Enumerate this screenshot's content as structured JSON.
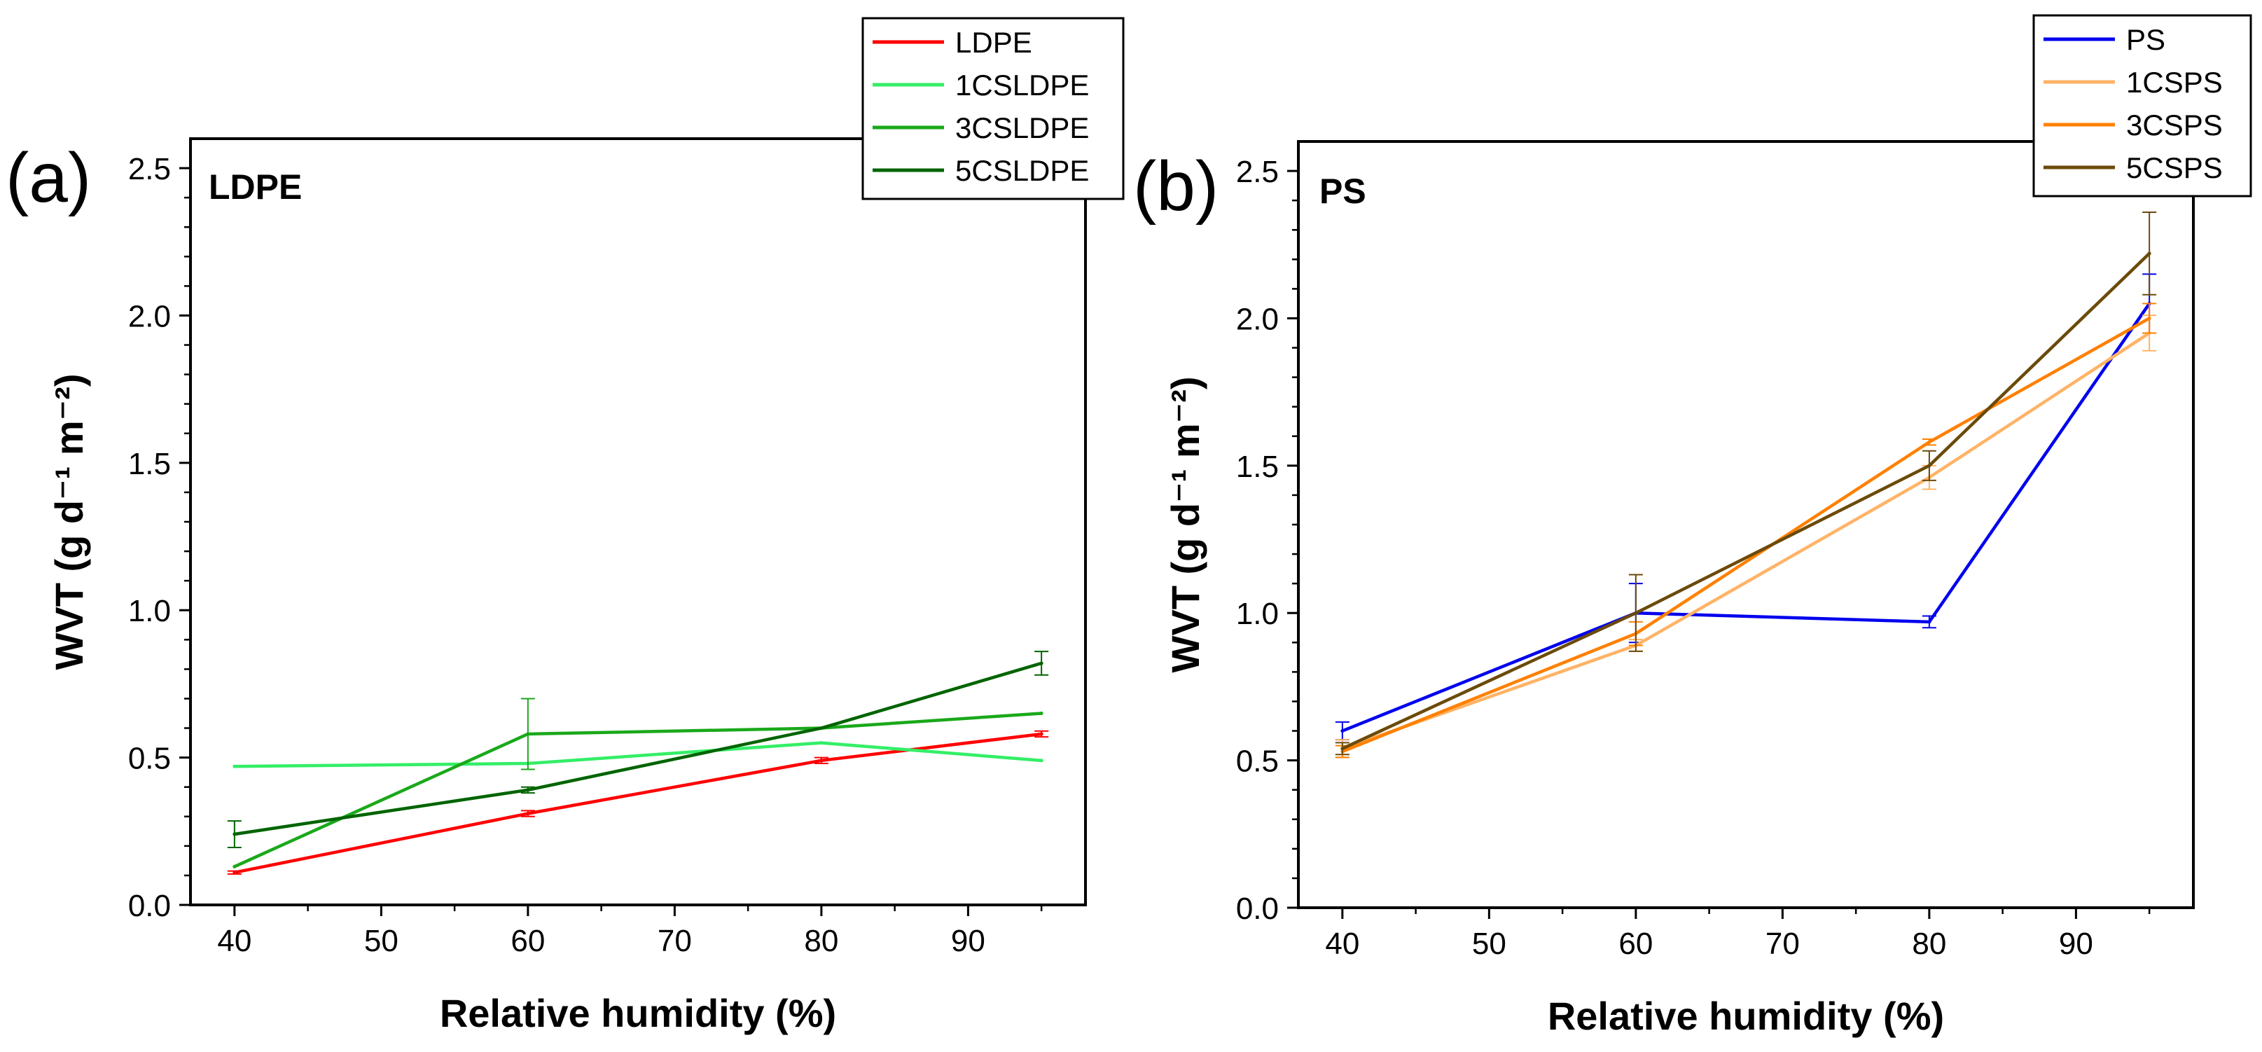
{
  "chart_data": [
    {
      "type": "line",
      "panel_label": "(a)",
      "title": "LDPE",
      "xlabel": "Relative humidity (%)",
      "ylabel": "WVT (g d⁻¹ m⁻²)",
      "xlim": [
        37,
        98
      ],
      "ylim": [
        0,
        2.6
      ],
      "xticks": [
        40,
        50,
        60,
        70,
        80,
        90
      ],
      "xtick_labels": [
        "40",
        "50",
        "60",
        "70",
        "80",
        "90"
      ],
      "yticks": [
        0,
        0.5,
        1.0,
        1.5,
        2.0,
        2.5
      ],
      "ytick_labels": [
        "0.0",
        "0.5",
        "1.0",
        "1.5",
        "2.0",
        "2.5"
      ],
      "legend_position": "top-right, above plot",
      "x": [
        40,
        60,
        80,
        95
      ],
      "series": [
        {
          "name": "LDPE",
          "color": "#ff0000",
          "values": [
            0.11,
            0.31,
            0.49,
            0.58
          ],
          "errors": [
            0.005,
            0.01,
            0.01,
            0.01
          ]
        },
        {
          "name": "1CSLDPE",
          "color": "#33ee66",
          "values": [
            0.47,
            0.48,
            0.55,
            0.49
          ],
          "errors": [
            0,
            0,
            0,
            0
          ]
        },
        {
          "name": "3CSLDPE",
          "color": "#1aa81a",
          "values": [
            0.13,
            0.58,
            0.6,
            0.65
          ],
          "errors": [
            0,
            0.12,
            0,
            0
          ]
        },
        {
          "name": "5CSLDPE",
          "color": "#006400",
          "values": [
            0.24,
            0.39,
            0.6,
            0.82
          ],
          "errors": [
            0.045,
            0.01,
            0,
            0.04
          ]
        }
      ]
    },
    {
      "type": "line",
      "panel_label": "(b)",
      "title": "PS",
      "xlabel": "Relative humidity (%)",
      "ylabel": "WVT (g d⁻¹ m⁻²)",
      "xlim": [
        37,
        98
      ],
      "ylim": [
        0,
        2.6
      ],
      "xticks": [
        40,
        50,
        60,
        70,
        80,
        90
      ],
      "xtick_labels": [
        "40",
        "50",
        "60",
        "70",
        "80",
        "90"
      ],
      "yticks": [
        0,
        0.5,
        1.0,
        1.5,
        2.0,
        2.5
      ],
      "ytick_labels": [
        "0.0",
        "0.5",
        "1.0",
        "1.5",
        "2.0",
        "2.5"
      ],
      "legend_position": "top-right, above plot",
      "x": [
        40,
        60,
        80,
        95
      ],
      "series": [
        {
          "name": "PS",
          "color": "#0000ee",
          "values": [
            0.6,
            1.0,
            0.97,
            2.05
          ],
          "errors": [
            0.03,
            0.1,
            0.02,
            0.1
          ]
        },
        {
          "name": "1CSPS",
          "color": "#ffb366",
          "values": [
            0.54,
            0.89,
            1.46,
            1.95
          ],
          "errors": [
            0.03,
            0.02,
            0.04,
            0.06
          ]
        },
        {
          "name": "3CSPS",
          "color": "#ff8000",
          "values": [
            0.53,
            0.93,
            1.58,
            2.0
          ],
          "errors": [
            0.02,
            0.04,
            0.01,
            0.05
          ]
        },
        {
          "name": "5CSPS",
          "color": "#6b4a0a",
          "values": [
            0.54,
            1.0,
            1.5,
            2.22
          ],
          "errors": [
            0.02,
            0.13,
            0.05,
            0.14
          ]
        }
      ]
    }
  ]
}
